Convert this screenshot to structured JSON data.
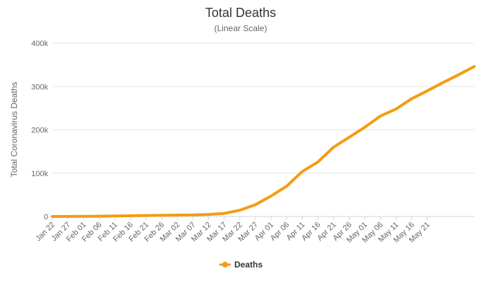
{
  "chart_data": {
    "type": "line",
    "title": "Total Deaths",
    "subtitle": "(Linear Scale)",
    "ylabel": "Total Coronavirus Deaths",
    "xlabel": "",
    "ylim": [
      0,
      400000
    ],
    "y_ticks": [
      {
        "value": 0,
        "label": "0"
      },
      {
        "value": 100000,
        "label": "100k"
      },
      {
        "value": 200000,
        "label": "200k"
      },
      {
        "value": 300000,
        "label": "300k"
      },
      {
        "value": 400000,
        "label": "400k"
      }
    ],
    "x_tick_labels": [
      "Jan 22",
      "Jan 27",
      "Feb 01",
      "Feb 06",
      "Feb 11",
      "Feb 16",
      "Feb 21",
      "Feb 26",
      "Mar 02",
      "Mar 07",
      "Mar 12",
      "Mar 17",
      "Mar 22",
      "Mar 27",
      "Apr 01",
      "Apr 06",
      "Apr 11",
      "Apr 16",
      "Apr 21",
      "Apr 26",
      "May 01",
      "May 06",
      "May 11",
      "May 16",
      "May 21"
    ],
    "x_tick_every_days": 5,
    "grid": true,
    "legend_position": "bottom-center",
    "color": "#f39c12",
    "series": [
      {
        "name": "Deaths",
        "color": "#f39c12",
        "values": [
          17,
          132,
          259,
          565,
          1018,
          1770,
          2251,
          2800,
          3118,
          3558,
          4720,
          7126,
          14633,
          27350,
          47194,
          70000,
          104000,
          126000,
          155000,
          170000,
          192000,
          213000,
          241000,
          258000,
          285000,
          302000,
          317000,
          330000,
          337000,
          346000
        ],
        "x_days": [
          0,
          5,
          10,
          15,
          20,
          25,
          30,
          35,
          40,
          45,
          50,
          55,
          60,
          65,
          70,
          75,
          80,
          85,
          90,
          95,
          100,
          105,
          110,
          115,
          120,
          125,
          128,
          130,
          132,
          124
        ]
      }
    ]
  }
}
